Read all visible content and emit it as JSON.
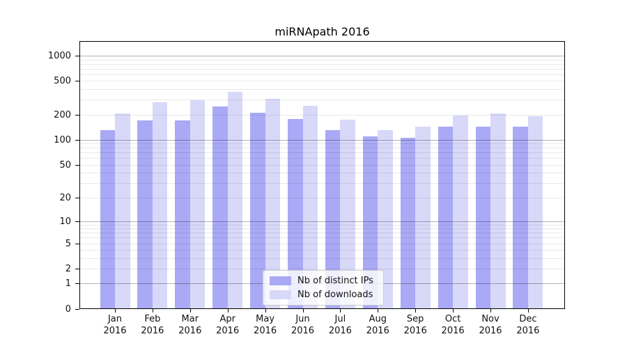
{
  "chart_data": {
    "type": "bar",
    "title": "miRNApath 2016",
    "categories": [
      "Jan",
      "Feb",
      "Mar",
      "Apr",
      "May",
      "Jun",
      "Jul",
      "Aug",
      "Sep",
      "Oct",
      "Nov",
      "Dec"
    ],
    "x_tick_year": "2016",
    "series": [
      {
        "name": "Nb of distinct IPs",
        "key": "ips",
        "color": "#a9a9f6",
        "values": [
          130,
          170,
          170,
          250,
          210,
          178,
          130,
          110,
          106,
          143,
          143,
          143
        ]
      },
      {
        "name": "Nb of downloads",
        "key": "downloads",
        "color": "#d8d8f9",
        "values": [
          208,
          278,
          295,
          370,
          307,
          252,
          172,
          130,
          143,
          193,
          207,
          190
        ]
      }
    ],
    "y_scale": "log1p",
    "ylim": [
      0,
      1500
    ],
    "y_ticks": [
      0,
      1,
      2,
      5,
      10,
      20,
      50,
      100,
      200,
      500,
      1000
    ],
    "y_major_gridlines": [
      1,
      10,
      100,
      1000
    ],
    "y_minor_gridlines": [
      2,
      3,
      4,
      5,
      6,
      7,
      8,
      9,
      20,
      30,
      40,
      50,
      60,
      70,
      80,
      90,
      200,
      300,
      400,
      500,
      600,
      700,
      800,
      900
    ],
    "grid": true,
    "legend": {
      "position": "lower center",
      "labels": [
        "Nb of distinct IPs",
        "Nb of downloads"
      ]
    }
  },
  "colors": {
    "background": "#ffffff",
    "bar_ips": "#a9a9f6",
    "bar_downloads": "#d8d8f9",
    "grid_minor": "#e8e8e8",
    "grid_major": "#b3b3b3",
    "axis": "#000000",
    "legend_border": "#cccccc"
  }
}
